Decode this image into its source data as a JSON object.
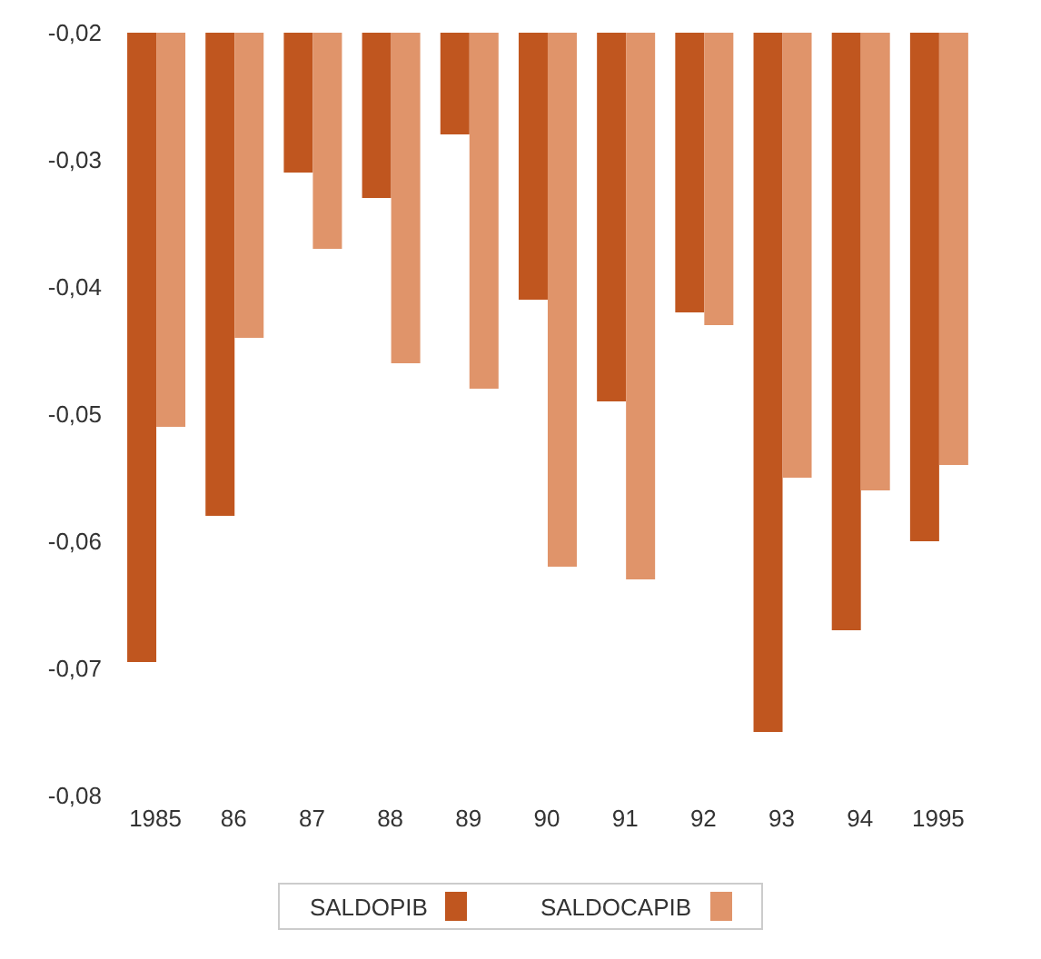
{
  "chart_data": {
    "type": "bar",
    "categories": [
      "1985",
      "86",
      "87",
      "88",
      "89",
      "90",
      "91",
      "92",
      "93",
      "94",
      "1995"
    ],
    "series": [
      {
        "name": "SALDOPIB",
        "color": "#c0561f",
        "values": [
          -0.0695,
          -0.058,
          -0.031,
          -0.033,
          -0.028,
          -0.041,
          -0.049,
          -0.042,
          -0.075,
          -0.067,
          -0.06
        ]
      },
      {
        "name": "SALDOCAPIB",
        "color": "#e0946a",
        "values": [
          -0.051,
          -0.044,
          -0.037,
          -0.046,
          -0.048,
          -0.062,
          -0.063,
          -0.043,
          -0.055,
          -0.056,
          -0.054
        ]
      }
    ],
    "ylim": [
      -0.08,
      -0.02
    ],
    "yticks": [
      {
        "value": -0.08,
        "label": "-0,08"
      },
      {
        "value": -0.07,
        "label": "-0,07"
      },
      {
        "value": -0.06,
        "label": "-0,06"
      },
      {
        "value": -0.05,
        "label": "-0,05"
      },
      {
        "value": -0.04,
        "label": "-0,04"
      },
      {
        "value": -0.03,
        "label": "-0,03"
      },
      {
        "value": -0.02,
        "label": "-0,02"
      }
    ],
    "grid": false,
    "legend": "bottom"
  }
}
